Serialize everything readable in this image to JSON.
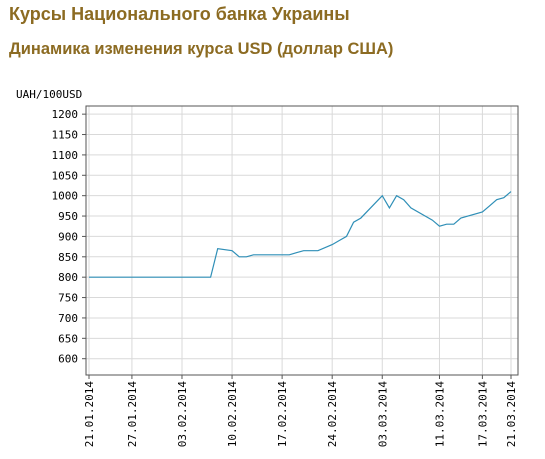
{
  "page": {
    "title": "Курсы Национального банка Украины",
    "subtitle": "Динамика изменения курса USD (доллар США)"
  },
  "chart_data": {
    "type": "line",
    "title": "",
    "xlabel": "",
    "ylabel": "UAH/100USD",
    "ylim": [
      560,
      1220
    ],
    "yticks": [
      600,
      650,
      700,
      750,
      800,
      850,
      900,
      950,
      1000,
      1050,
      1100,
      1150,
      1200
    ],
    "xticks": [
      "21.01.2014",
      "27.01.2014",
      "03.02.2014",
      "10.02.2014",
      "17.02.2014",
      "24.02.2014",
      "03.03.2014",
      "11.03.2014",
      "17.03.2014",
      "21.03.2014"
    ],
    "grid": true,
    "line_color": "#2f8fb7",
    "series": [
      {
        "x": [
          "21.01.2014",
          "22.01.2014",
          "23.01.2014",
          "24.01.2014",
          "27.01.2014",
          "28.01.2014",
          "29.01.2014",
          "30.01.2014",
          "31.01.2014",
          "03.02.2014",
          "04.02.2014",
          "05.02.2014",
          "06.02.2014",
          "07.02.2014",
          "08.02.2014",
          "10.02.2014",
          "11.02.2014",
          "12.02.2014",
          "13.02.2014",
          "14.02.2014",
          "17.02.2014",
          "18.02.2014",
          "19.02.2014",
          "20.02.2014",
          "21.02.2014",
          "22.02.2014",
          "24.02.2014",
          "25.02.2014",
          "26.02.2014",
          "27.02.2014",
          "28.02.2014",
          "03.03.2014",
          "04.03.2014",
          "05.03.2014",
          "06.03.2014",
          "07.03.2014",
          "10.03.2014",
          "11.03.2014",
          "12.03.2014",
          "13.03.2014",
          "14.03.2014",
          "17.03.2014",
          "18.03.2014",
          "19.03.2014",
          "20.03.2014",
          "21.03.2014"
        ],
        "values": [
          800,
          800,
          800,
          800,
          800,
          800,
          800,
          800,
          800,
          800,
          800,
          800,
          800,
          800,
          870,
          865,
          850,
          850,
          855,
          855,
          855,
          855,
          860,
          865,
          865,
          865,
          880,
          890,
          900,
          935,
          945,
          1000,
          970,
          1000,
          990,
          970,
          940,
          925,
          930,
          930,
          945,
          960,
          975,
          990,
          995,
          1010
        ]
      }
    ]
  }
}
